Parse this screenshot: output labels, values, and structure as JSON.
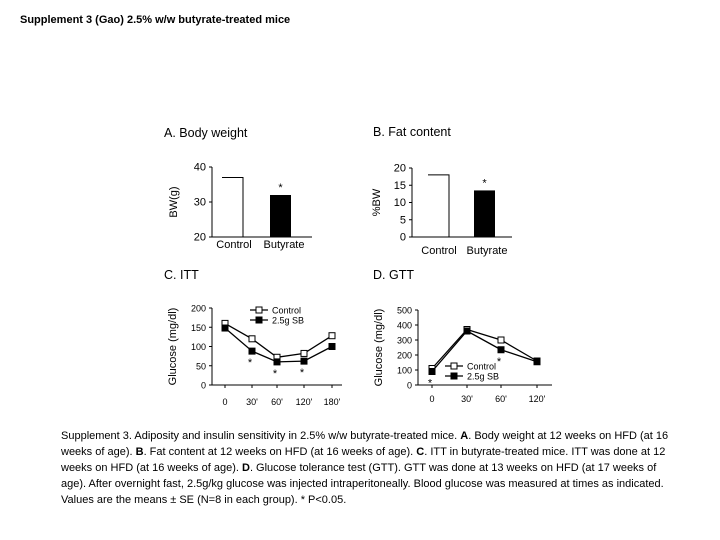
{
  "page": {
    "title": "Supplement 3 (Gao) 2.5% w/w butyrate-treated mice"
  },
  "panels": {
    "a": {
      "letter": "A.",
      "title": "Body weight"
    },
    "b": {
      "letter": "B.",
      "title": "Fat content"
    },
    "c": {
      "letter": "C.",
      "title": "ITT"
    },
    "d": {
      "letter": "D.",
      "title": "GTT"
    }
  },
  "caption": {
    "intro": "Supplement 3. Adiposity and insulin sensitivity in 2.5% w/w butyrate-treated mice.",
    "a_letter": "A",
    "a_text": ". Body weight at 12 weeks on HFD (at 16 weeks of age).",
    "b_letter": "B",
    "b_text": ". Fat content at 12 weeks on HFD (at 16 weeks of age).",
    "c_letter": "C",
    "c_text": ". ITT in butyrate-treated mice. ITT was done at 12 weeks on HFD (at 16 weeks of age).",
    "d_letter": "D",
    "d_text": ". Glucose tolerance test (GTT). GTT was done at 13 weeks on HFD (at 17 weeks of age). After overnight fast, 2.5g/kg glucose was injected intraperitoneally. Blood glucose was measured at times as indicated. Values are the means ± SE (N=8 in each group). * P<0.05."
  },
  "chart_data": [
    {
      "id": "body-weight",
      "type": "bar",
      "title": "Body weight",
      "ylabel": "BW(g)",
      "xlabel": "",
      "categories": [
        "Control",
        "Butyrate"
      ],
      "values": [
        37,
        32
      ],
      "fills": [
        "#ffffff",
        "#000000"
      ],
      "significance": [
        "",
        "*"
      ],
      "yticks": [
        20,
        30,
        40
      ],
      "ylim": [
        20,
        40
      ],
      "grid": false
    },
    {
      "id": "fat-content",
      "type": "bar",
      "title": "Fat content",
      "ylabel": "%BW",
      "xlabel": "",
      "categories": [
        "Control",
        "Butyrate"
      ],
      "values": [
        18,
        13.5
      ],
      "fills": [
        "#ffffff",
        "#000000"
      ],
      "significance": [
        "",
        "*"
      ],
      "yticks": [
        0,
        5,
        10,
        15,
        20
      ],
      "ylim": [
        0,
        20
      ],
      "grid": false
    },
    {
      "id": "itt",
      "type": "line",
      "title": "ITT",
      "ylabel": "Glucose (mg/dl)",
      "xlabel": "",
      "x": [
        0,
        30,
        60,
        120,
        180
      ],
      "xticklabels": [
        "0",
        "30'",
        "60'",
        "120'",
        "180'"
      ],
      "yticks": [
        0,
        50,
        100,
        150,
        200
      ],
      "ylim": [
        0,
        200
      ],
      "legend_position": "top-right",
      "series": [
        {
          "name": "Control",
          "marker": "open-square",
          "values": [
            160,
            120,
            72,
            82,
            128
          ],
          "significance": [
            "",
            "",
            "",
            "",
            ""
          ]
        },
        {
          "name": "2.5g SB",
          "marker": "filled-square",
          "values": [
            148,
            88,
            60,
            62,
            100
          ],
          "significance": [
            "",
            "*",
            "*",
            "*",
            ""
          ]
        }
      ],
      "grid": false
    },
    {
      "id": "gtt",
      "type": "line",
      "title": "GTT",
      "ylabel": "Glucose (mg/dl)",
      "xlabel": "",
      "x": [
        0,
        30,
        60,
        120
      ],
      "xticklabels": [
        "0",
        "30'",
        "60'",
        "120'"
      ],
      "yticks": [
        0,
        100,
        200,
        300,
        400,
        500
      ],
      "ylim": [
        0,
        500
      ],
      "legend_position": "bottom-left",
      "series": [
        {
          "name": "Control",
          "marker": "open-square",
          "values": [
            110,
            370,
            300,
            160
          ],
          "significance": [
            "",
            "",
            "",
            ""
          ]
        },
        {
          "name": "2.5g SB",
          "marker": "filled-square",
          "values": [
            90,
            360,
            235,
            155
          ],
          "significance": [
            "*",
            "",
            "*",
            ""
          ]
        }
      ],
      "grid": false
    }
  ]
}
